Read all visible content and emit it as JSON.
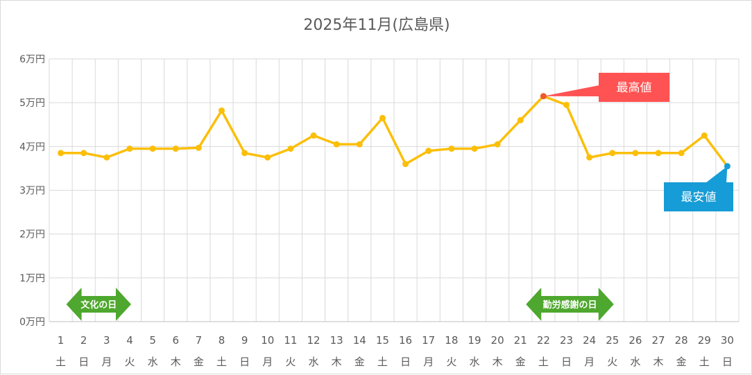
{
  "chart_data": {
    "type": "line",
    "title": "2025年11月(広島県)",
    "y_ticks": [
      "0万円",
      "1万円",
      "2万円",
      "3万円",
      "4万円",
      "5万円",
      "6万円"
    ],
    "ylim": [
      0,
      60000
    ],
    "grid": true,
    "x": [
      "1",
      "2",
      "3",
      "4",
      "5",
      "6",
      "7",
      "8",
      "9",
      "10",
      "11",
      "12",
      "13",
      "14",
      "15",
      "16",
      "17",
      "18",
      "19",
      "20",
      "21",
      "22",
      "23",
      "24",
      "25",
      "26",
      "27",
      "28",
      "29",
      "30"
    ],
    "weekdays": [
      "土",
      "日",
      "月",
      "火",
      "水",
      "木",
      "金",
      "土",
      "日",
      "月",
      "火",
      "水",
      "木",
      "金",
      "土",
      "日",
      "月",
      "火",
      "水",
      "木",
      "金",
      "土",
      "日",
      "月",
      "火",
      "水",
      "木",
      "金",
      "土",
      "日"
    ],
    "series": [
      {
        "values": [
          38500,
          38500,
          37500,
          39500,
          39500,
          39500,
          39700,
          48200,
          38500,
          37500,
          39500,
          42500,
          40500,
          40500,
          46500,
          36000,
          39000,
          39500,
          39500,
          40500,
          46000,
          51500,
          49500,
          37500,
          38500,
          38500,
          38500,
          38500,
          42500,
          35500
        ],
        "color": "#fbbf0a"
      }
    ],
    "max_point": {
      "index": 21,
      "label": "最高値",
      "color": "#ff5252",
      "marker_color": "#f0582a"
    },
    "min_point": {
      "index": 29,
      "label": "最安値",
      "color": "#169cd6",
      "marker_color": "#169cd6"
    },
    "holidays": [
      {
        "label": "文化の日",
        "from_index": 0,
        "to_index": 3
      },
      {
        "label": "勤労感謝の日",
        "from_index": 20,
        "to_index": 24
      }
    ],
    "holiday_color": "#4ea72e"
  }
}
